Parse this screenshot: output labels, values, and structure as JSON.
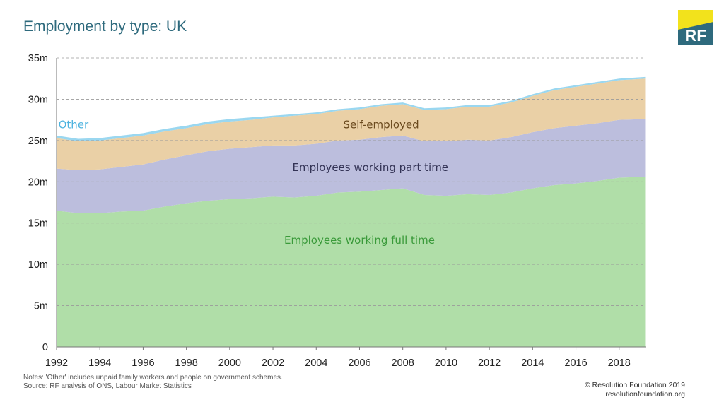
{
  "header": {
    "title": "Employment by type: UK"
  },
  "logo": {
    "text": "RF",
    "bg_color": "#2e6a7d",
    "accent_color": "#f2e21c"
  },
  "notes": {
    "line1": "Notes: 'Other' includes unpaid family workers and people on government schemes.",
    "line2": "Source: RF analysis of ONS, Labour Market Statistics"
  },
  "footer": {
    "copyright": "© Resolution Foundation 2019",
    "url": "resolutionfoundation.org"
  },
  "chart_data": {
    "type": "area",
    "stacked": true,
    "x": [
      1992,
      1993,
      1994,
      1995,
      1996,
      1997,
      1998,
      1999,
      2000,
      2001,
      2002,
      2003,
      2004,
      2005,
      2006,
      2007,
      2008,
      2009,
      2010,
      2011,
      2012,
      2013,
      2014,
      2015,
      2016,
      2017,
      2018,
      2019.2
    ],
    "series": [
      {
        "name": "Employees working full time",
        "color": "#b0dea8",
        "label_color": "#3a9a3a",
        "values": [
          16.5,
          16.2,
          16.2,
          16.4,
          16.5,
          17.0,
          17.4,
          17.7,
          17.9,
          18.0,
          18.2,
          18.1,
          18.3,
          18.7,
          18.8,
          19.0,
          19.2,
          18.4,
          18.3,
          18.5,
          18.4,
          18.7,
          19.2,
          19.6,
          19.8,
          20.1,
          20.5,
          20.6
        ]
      },
      {
        "name": "Employees working part time",
        "color": "#bcbedd",
        "label_color": "#333355",
        "values": [
          5.1,
          5.2,
          5.3,
          5.4,
          5.6,
          5.7,
          5.8,
          6.0,
          6.1,
          6.2,
          6.2,
          6.3,
          6.3,
          6.3,
          6.3,
          6.4,
          6.4,
          6.5,
          6.6,
          6.6,
          6.6,
          6.7,
          6.8,
          6.9,
          7.0,
          7.0,
          7.0,
          7.0
        ]
      },
      {
        "name": "Self-employed",
        "color": "#ead0a6",
        "label_color": "#6b4a1e",
        "values": [
          3.7,
          3.5,
          3.5,
          3.5,
          3.5,
          3.4,
          3.3,
          3.3,
          3.3,
          3.3,
          3.4,
          3.6,
          3.6,
          3.6,
          3.7,
          3.8,
          3.8,
          3.8,
          3.9,
          4.0,
          4.1,
          4.2,
          4.4,
          4.6,
          4.7,
          4.8,
          4.8,
          4.9
        ]
      },
      {
        "name": "Other",
        "color": "#9ad7f0",
        "label_color": "#4db3df",
        "values": [
          0.3,
          0.3,
          0.3,
          0.3,
          0.3,
          0.3,
          0.3,
          0.3,
          0.3,
          0.3,
          0.2,
          0.2,
          0.2,
          0.2,
          0.2,
          0.2,
          0.2,
          0.2,
          0.2,
          0.2,
          0.2,
          0.2,
          0.2,
          0.2,
          0.2,
          0.2,
          0.2,
          0.2
        ]
      }
    ],
    "ylim": [
      0,
      35
    ],
    "xlim": [
      1992,
      2019.25
    ],
    "y_ticks": [
      0,
      5,
      10,
      15,
      20,
      25,
      30,
      35
    ],
    "y_tick_labels": [
      "0",
      "5m",
      "10m",
      "15m",
      "20m",
      "25m",
      "30m",
      "35m"
    ],
    "x_ticks": [
      1992,
      1994,
      1996,
      1998,
      2000,
      2002,
      2004,
      2006,
      2008,
      2010,
      2012,
      2014,
      2016,
      2018
    ],
    "x_tick_labels": [
      "1992",
      "1994",
      "1996",
      "1998",
      "2000",
      "2002",
      "2004",
      "2006",
      "2008",
      "2010",
      "2012",
      "2014",
      "2016",
      "2018"
    ],
    "area_labels": [
      {
        "series": "Other",
        "text": "Other",
        "x": 1993.0,
        "y": 26.5
      },
      {
        "series": "Self-employed",
        "text": "Self-employed",
        "x": 2007.0,
        "y": 26.5
      },
      {
        "series": "Employees working part time",
        "text": "Employees working part time",
        "x": 2006.5,
        "y": 21.3
      },
      {
        "series": "Employees working full time",
        "text": "Employees working full time",
        "x": 2006.0,
        "y": 12.5
      }
    ],
    "grid": true,
    "grid_style": "dashed horizontal"
  }
}
